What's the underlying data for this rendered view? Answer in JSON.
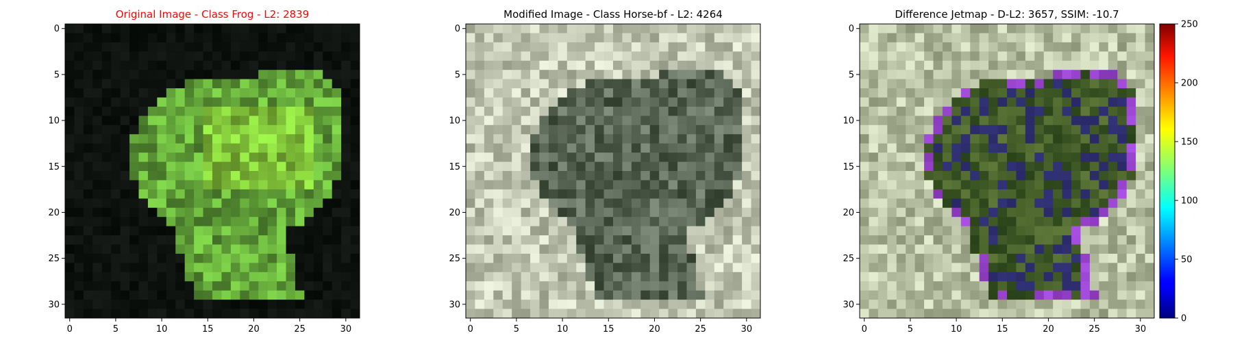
{
  "figure": {
    "panels": [
      {
        "title": "Original Image - Class Frog - L2: 2839",
        "title_color": "#ff0000",
        "style": "frog"
      },
      {
        "title": "Modified Image - Class Horse-bf - L2: 4264",
        "title_color": "#000000",
        "style": "modified"
      },
      {
        "title": "Difference Jetmap - D-L2: 3657, SSIM: -10.7",
        "title_color": "#000000",
        "style": "diff"
      }
    ],
    "colorbar": {
      "colormap": "jet",
      "ticks": [
        "0",
        "50",
        "100",
        "150",
        "200",
        "250"
      ]
    }
  },
  "chart_data": [
    {
      "type": "heatmap",
      "title": "Original Image - Class Frog - L2: 2839",
      "xlim": [
        -0.5,
        31.5
      ],
      "ylim": [
        31.5,
        -0.5
      ],
      "xticks": [
        0,
        5,
        10,
        15,
        20,
        25,
        30
      ],
      "yticks": [
        0,
        5,
        10,
        15,
        20,
        25,
        30
      ],
      "image_size": [
        32,
        32
      ]
    },
    {
      "type": "heatmap",
      "title": "Modified Image - Class Horse-bf - L2: 4264",
      "xlim": [
        -0.5,
        31.5
      ],
      "ylim": [
        31.5,
        -0.5
      ],
      "xticks": [
        0,
        5,
        10,
        15,
        20,
        25,
        30
      ],
      "yticks": [
        0,
        5,
        10,
        15,
        20,
        25,
        30
      ],
      "image_size": [
        32,
        32
      ]
    },
    {
      "type": "heatmap",
      "title": "Difference Jetmap - D-L2: 3657, SSIM: -10.7",
      "xlim": [
        -0.5,
        31.5
      ],
      "ylim": [
        31.5,
        -0.5
      ],
      "xticks": [
        0,
        5,
        10,
        15,
        20,
        25,
        30
      ],
      "yticks": [
        0,
        5,
        10,
        15,
        20,
        25,
        30
      ],
      "image_size": [
        32,
        32
      ],
      "colorbar": {
        "range": [
          0,
          250
        ],
        "ticks": [
          0,
          50,
          100,
          150,
          200,
          250
        ],
        "colormap": "jet"
      }
    }
  ]
}
